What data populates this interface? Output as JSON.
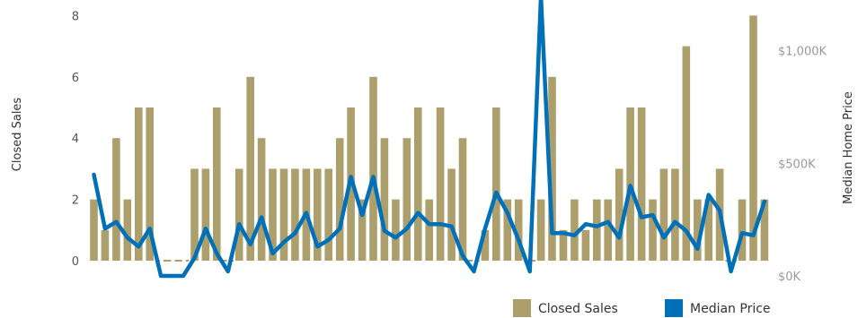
{
  "chart_data": {
    "type": "bar+line",
    "title": "",
    "y_left_label": "Closed Sales",
    "y_right_label": "Median Home Price",
    "y_left_ticks": [
      "0",
      "2",
      "4",
      "6",
      "8"
    ],
    "y_right_ticks": [
      "$0K",
      "$500K",
      "$1,000K"
    ],
    "y_left_lim": [
      0,
      8
    ],
    "y_right_lim": [
      0,
      1200
    ],
    "legend_position": "bottom-right",
    "colors": {
      "closed_sales": "#ad9f6c",
      "median_price": "#0070b8"
    },
    "series": [
      {
        "name": "Closed Sales",
        "type": "bar",
        "values": [
          2,
          1,
          4,
          2,
          5,
          5,
          0,
          0,
          0,
          3,
          3,
          5,
          0,
          3,
          6,
          4,
          3,
          3,
          3,
          3,
          3,
          3,
          4,
          5,
          2,
          6,
          4,
          2,
          4,
          5,
          2,
          5,
          3,
          4,
          0,
          1,
          5,
          2,
          2,
          0,
          2,
          6,
          1,
          2,
          1,
          2,
          2,
          3,
          5,
          5,
          2,
          3,
          3,
          7,
          2,
          2,
          3,
          0,
          2,
          8,
          2
        ]
      },
      {
        "name": "Median Price",
        "type": "line",
        "values": [
          450,
          210,
          240,
          170,
          130,
          210,
          0,
          0,
          0,
          80,
          210,
          100,
          20,
          230,
          140,
          260,
          100,
          150,
          190,
          280,
          130,
          160,
          210,
          440,
          270,
          440,
          200,
          170,
          210,
          280,
          230,
          230,
          220,
          90,
          20,
          210,
          370,
          280,
          160,
          20,
          1240,
          190,
          190,
          180,
          230,
          220,
          240,
          170,
          400,
          260,
          270,
          170,
          240,
          200,
          120,
          360,
          290,
          20,
          190,
          180,
          330
        ]
      }
    ]
  },
  "legend": {
    "closed_sales_label": "Closed Sales",
    "median_price_label": "Median Price"
  }
}
